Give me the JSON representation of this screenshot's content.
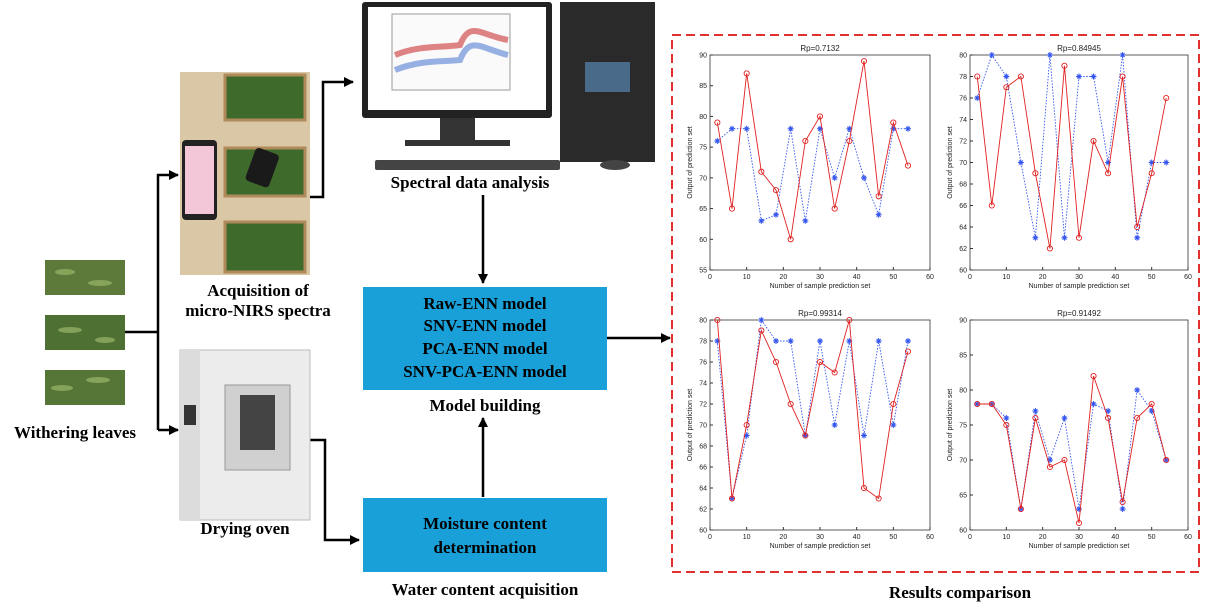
{
  "nodes": {
    "withering": "Withering leaves",
    "acquisition": [
      "Acquisition of",
      "micro-NIRS spectra"
    ],
    "spectral": "Spectral data analysis",
    "models": [
      "Raw-ENN model",
      "SNV-ENN model",
      "PCA-ENN model",
      "SNV-PCA-ENN model"
    ],
    "model_building": "Model building",
    "oven": "Drying oven",
    "moisture": [
      "Moisture content",
      "determination"
    ],
    "water": "Water content acquisition",
    "results": "Results comparison"
  },
  "charts": [
    {
      "type": "line",
      "title": "Rp=0.7132",
      "x_label": "Number of sample prediction set",
      "y_label": "Output of prediction set",
      "x": [
        2,
        6,
        10,
        14,
        18,
        22,
        26,
        30,
        34,
        38,
        42,
        46,
        50,
        54
      ],
      "series": [
        {
          "color": "#3355ee",
          "values": [
            76,
            78,
            78,
            63,
            64,
            78,
            63,
            78,
            70,
            78,
            70,
            64,
            78,
            78
          ]
        },
        {
          "color": "#e02020",
          "values": [
            79,
            65,
            87,
            71,
            68,
            60,
            76,
            80,
            65,
            76,
            89,
            67,
            79,
            72
          ]
        }
      ],
      "xlim": [
        0,
        60
      ],
      "xticks": [
        0,
        10,
        20,
        30,
        40,
        50,
        60
      ],
      "ylim": [
        55,
        90
      ],
      "yticks": [
        55,
        60,
        65,
        70,
        75,
        80,
        85,
        90
      ]
    },
    {
      "type": "line",
      "title": "Rp=0.84945",
      "x_label": "Number of sample prediction set",
      "y_label": "Output of prediction set",
      "x": [
        2,
        6,
        10,
        14,
        18,
        22,
        26,
        30,
        34,
        38,
        42,
        46,
        50,
        54
      ],
      "series": [
        {
          "color": "#3355ee",
          "values": [
            76,
            80,
            78,
            70,
            63,
            80,
            63,
            78,
            78,
            70,
            80,
            63,
            70,
            70
          ]
        },
        {
          "color": "#e02020",
          "values": [
            78,
            66,
            77,
            78,
            69,
            62,
            79,
            63,
            72,
            69,
            78,
            64,
            69,
            76
          ]
        }
      ],
      "xlim": [
        0,
        60
      ],
      "xticks": [
        0,
        10,
        20,
        30,
        40,
        50,
        60
      ],
      "ylim": [
        60,
        80
      ],
      "yticks": [
        60,
        62,
        64,
        66,
        68,
        70,
        72,
        74,
        76,
        78,
        80
      ]
    },
    {
      "type": "line",
      "title": "Rp=0.99314",
      "x_label": "Number of sample prediction set",
      "y_label": "Output of prediction set",
      "x": [
        2,
        6,
        10,
        14,
        18,
        22,
        26,
        30,
        34,
        38,
        42,
        46,
        50,
        54
      ],
      "series": [
        {
          "color": "#3355ee",
          "values": [
            78,
            63,
            69,
            80,
            78,
            78,
            69,
            78,
            70,
            78,
            69,
            78,
            70,
            78
          ]
        },
        {
          "color": "#e02020",
          "values": [
            80,
            63,
            70,
            79,
            76,
            72,
            69,
            76,
            75,
            80,
            64,
            63,
            72,
            77
          ]
        }
      ],
      "xlim": [
        0,
        60
      ],
      "xticks": [
        0,
        10,
        20,
        30,
        40,
        50,
        60
      ],
      "ylim": [
        60,
        80
      ],
      "yticks": [
        60,
        62,
        64,
        66,
        68,
        70,
        72,
        74,
        76,
        78,
        80
      ]
    },
    {
      "type": "line",
      "title": "Rp=0.91492",
      "x_label": "Number of sample prediction set",
      "y_label": "Output of prediction set",
      "x": [
        2,
        6,
        10,
        14,
        18,
        22,
        26,
        30,
        34,
        38,
        42,
        46,
        50,
        54
      ],
      "series": [
        {
          "color": "#3355ee",
          "values": [
            78,
            78,
            76,
            63,
            77,
            70,
            76,
            63,
            78,
            77,
            63,
            80,
            77,
            70
          ]
        },
        {
          "color": "#e02020",
          "values": [
            78,
            78,
            75,
            63,
            76,
            69,
            70,
            61,
            82,
            76,
            64,
            76,
            78,
            70
          ]
        }
      ],
      "xlim": [
        0,
        60
      ],
      "xticks": [
        0,
        10,
        20,
        30,
        40,
        50,
        60
      ],
      "ylim": [
        60,
        90
      ],
      "yticks": [
        60,
        65,
        70,
        75,
        80,
        85,
        90
      ]
    }
  ]
}
